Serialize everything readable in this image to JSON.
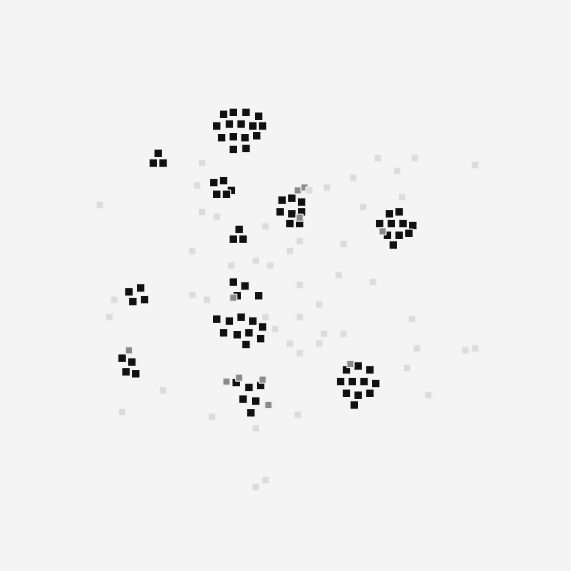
{
  "chart_data": {
    "type": "scatter",
    "xlim": [
      0,
      571
    ],
    "ylim": [
      0,
      571
    ],
    "grid": false,
    "tick_labels": false,
    "series": [
      {
        "color": "#dcdcdc",
        "marker": "square",
        "x": [
          95,
          195,
          200,
          380,
          418,
          480,
          400,
          355,
          328,
          310,
          365,
          405,
          265,
          300,
          345,
          290,
          255,
          270,
          230,
          375,
          340,
          300,
          190,
          110,
          105,
          205,
          265,
          275,
          300,
          320,
          345,
          325,
          290,
          300,
          415,
          420,
          410,
          470,
          480,
          160,
          118,
          210,
          298,
          255,
          432,
          255,
          265,
          190,
          215,
          200,
          320
        ],
        "values": [
          368,
          388,
          411,
          416,
          416,
          409,
          403,
          396,
          386,
          383,
          366,
          376,
          346,
          331,
          328,
          321,
          311,
          306,
          306,
          289,
          296,
          286,
          276,
          271,
          253,
          271,
          253,
          241,
          253,
          266,
          236,
          236,
          226,
          216,
          251,
          221,
          201,
          219,
          221,
          178,
          156,
          151,
          153,
          139,
          173,
          79,
          86,
          321,
          356,
          361,
          226
        ]
      },
      {
        "color": "#8a8a8a",
        "marker": "square",
        "x": [
          298,
          305,
          125,
          232,
          238,
          262,
          352,
          268,
          385,
          225,
          300
        ],
        "values": [
          383,
          386,
          219,
          273,
          191,
          189,
          205,
          163,
          341,
          187,
          355
        ]
      },
      {
        "color": "#111111",
        "marker": "square",
        "x": [
          222,
          232,
          245,
          258,
          215,
          228,
          240,
          252,
          262,
          220,
          232,
          244,
          256,
          232,
          245,
          150,
          160,
          155,
          212,
          222,
          230,
          215,
          225,
          232,
          242,
          238,
          282,
          292,
          302,
          280,
          292,
          302,
          290,
          300,
          392,
          402,
          382,
          394,
          406,
          416,
          390,
          402,
          412,
          396,
          125,
          137,
          129,
          141,
          232,
          244,
          236,
          258,
          215,
          228,
          240,
          252,
          262,
          222,
          236,
          248,
          260,
          245,
          118,
          128,
          122,
          132,
          348,
          360,
          372,
          342,
          354,
          366,
          378,
          348,
          360,
          372,
          356,
          235,
          248,
          260,
          242,
          255,
          250
        ],
        "values": [
          461,
          463,
          463,
          459,
          449,
          451,
          451,
          449,
          449,
          437,
          438,
          437,
          439,
          425,
          426,
          411,
          411,
          421,
          391,
          393,
          383,
          379,
          379,
          333,
          333,
          343,
          373,
          375,
          371,
          361,
          359,
          361,
          349,
          349,
          359,
          361,
          349,
          349,
          349,
          347,
          337,
          337,
          339,
          327,
          279,
          283,
          269,
          271,
          289,
          285,
          275,
          275,
          251,
          249,
          253,
          249,
          243,
          237,
          235,
          237,
          231,
          225,
          211,
          207,
          197,
          195,
          199,
          203,
          199,
          187,
          187,
          187,
          185,
          175,
          173,
          175,
          163,
          186,
          181,
          183,
          169,
          167,
          155
        ]
      }
    ]
  }
}
